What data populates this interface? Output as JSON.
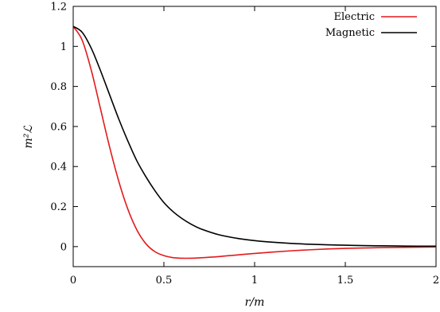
{
  "chart_data": {
    "type": "line",
    "title": "",
    "xlabel": "r/m",
    "ylabel": "m²ℒ",
    "xlim": [
      0,
      2
    ],
    "ylim": [
      -0.1,
      1.2
    ],
    "xticks": [
      0,
      0.5,
      1,
      1.5,
      2
    ],
    "xtick_labels": [
      "0",
      "0.5",
      "1",
      "1.5",
      "2"
    ],
    "yticks": [
      0,
      0.2,
      0.4,
      0.6,
      0.8,
      1,
      1.2
    ],
    "ytick_labels": [
      "0",
      "0.2",
      "0.4",
      "0.6",
      "0.8",
      "1",
      "1.2"
    ],
    "grid": false,
    "legend_position": "top-right",
    "series": [
      {
        "name": "Electric",
        "color": "#e41a1c",
        "x": [
          0,
          0.05,
          0.1,
          0.15,
          0.2,
          0.25,
          0.3,
          0.35,
          0.4,
          0.45,
          0.5,
          0.55,
          0.6,
          0.65,
          0.7,
          0.8,
          0.9,
          1.0,
          1.1,
          1.2,
          1.3,
          1.4,
          1.5,
          1.6,
          1.7,
          1.8,
          1.9,
          2.0
        ],
        "y": [
          1.1,
          1.03,
          0.88,
          0.69,
          0.5,
          0.33,
          0.19,
          0.085,
          0.015,
          -0.025,
          -0.045,
          -0.055,
          -0.058,
          -0.058,
          -0.056,
          -0.05,
          -0.042,
          -0.034,
          -0.027,
          -0.021,
          -0.016,
          -0.012,
          -0.009,
          -0.007,
          -0.005,
          -0.004,
          -0.003,
          -0.002
        ]
      },
      {
        "name": "Magnetic",
        "color": "#000000",
        "x": [
          0,
          0.05,
          0.1,
          0.15,
          0.2,
          0.25,
          0.3,
          0.35,
          0.4,
          0.45,
          0.5,
          0.55,
          0.6,
          0.65,
          0.7,
          0.8,
          0.9,
          1.0,
          1.1,
          1.2,
          1.3,
          1.4,
          1.5,
          1.6,
          1.7,
          1.8,
          1.9,
          2.0
        ],
        "y": [
          1.1,
          1.07,
          0.99,
          0.88,
          0.76,
          0.64,
          0.53,
          0.43,
          0.35,
          0.28,
          0.22,
          0.175,
          0.14,
          0.112,
          0.09,
          0.06,
          0.042,
          0.03,
          0.022,
          0.016,
          0.012,
          0.009,
          0.007,
          0.005,
          0.004,
          0.003,
          0.002,
          0.002
        ]
      }
    ]
  }
}
